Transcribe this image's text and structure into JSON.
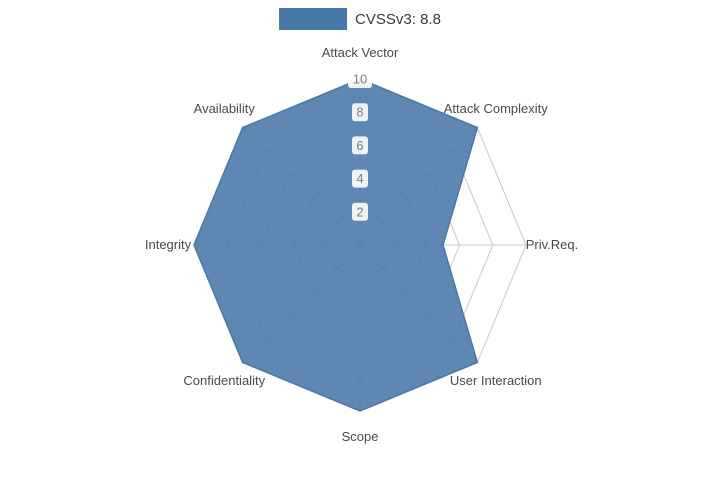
{
  "legend": {
    "label": "CVSSv3: 8.8",
    "color": "#4878a8"
  },
  "chart_data": {
    "type": "radar",
    "title": "",
    "categories": [
      "Attack Vector",
      "Attack Complexity",
      "Priv.Req.",
      "User Interaction",
      "Scope",
      "Confidentiality",
      "Integrity",
      "Availability"
    ],
    "series": [
      {
        "name": "CVSSv3: 8.8",
        "values": [
          10,
          10,
          5,
          10,
          10,
          10,
          10,
          10
        ]
      }
    ],
    "radial_ticks": [
      2,
      4,
      6,
      8,
      10
    ],
    "rlim": [
      0,
      10
    ],
    "grid": "polygon-web",
    "grid_color": "#c8c8c8",
    "fill_color": "#4878a8",
    "fill_opacity": 0.88,
    "tick_label_color": "#7f7f7f",
    "axis_label_color": "#4a4a4a",
    "legend_position": "top-center"
  }
}
